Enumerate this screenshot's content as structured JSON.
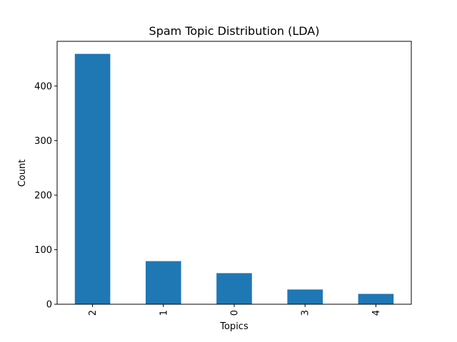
{
  "chart_data": {
    "type": "bar",
    "title": "Spam Topic Distribution (LDA)",
    "xlabel": "Topics",
    "ylabel": "Count",
    "categories": [
      "2",
      "1",
      "0",
      "3",
      "4"
    ],
    "values": [
      459,
      79,
      57,
      27,
      19
    ],
    "ylim": [
      0,
      482
    ],
    "yticks": [
      0,
      100,
      200,
      300,
      400
    ],
    "xtick_rotation": "vertical",
    "grid": false,
    "legend": "none",
    "bar_color": "#1f77b4"
  }
}
